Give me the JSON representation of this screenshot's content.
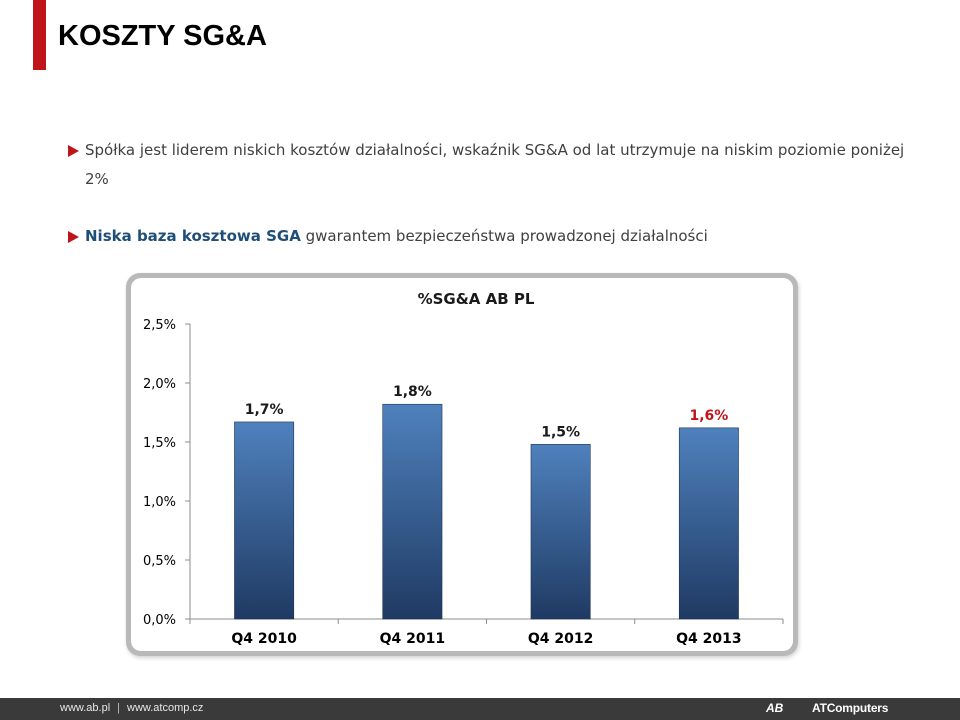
{
  "slide": {
    "title": "KOSZTY SG&A",
    "bullets": [
      {
        "text": "Spółka jest liderem niskich kosztów działalności,  wskaźnik SG&A od lat utrzymuje na niskim poziomie poniżej 2%"
      },
      {
        "strong": "Niska baza kosztowa SGA",
        "text": " gwarantem bezpieczeństwa prowadzonej działalności"
      }
    ]
  },
  "colors": {
    "accent": "#c0141b",
    "heading_blue": "#1f4e79",
    "bar_top": "#4f81bd",
    "bar_bottom": "#1f3a63",
    "highlight_label": "#c0141b"
  },
  "chart_data": {
    "type": "bar",
    "title": "%SG&A AB PL",
    "categories": [
      "Q4 2010",
      "Q4 2011",
      "Q4 2012",
      "Q4 2013"
    ],
    "values": [
      1.67,
      1.82,
      1.48,
      1.62
    ],
    "data_labels": [
      "1,7%",
      "1,8%",
      "1,5%",
      "1,6%"
    ],
    "highlight_index": 3,
    "ylim": [
      0,
      2.5
    ],
    "yticks": [
      0,
      0.5,
      1.0,
      1.5,
      2.0,
      2.5
    ],
    "ytick_labels": [
      "0,0%",
      "0,5%",
      "1,0%",
      "1,5%",
      "2,0%",
      "2,5%"
    ],
    "xlabel": "",
    "ylabel": "",
    "grid": false,
    "legend": false
  },
  "footer": {
    "link_ab": "www.ab.pl",
    "separator": "|",
    "link_atcomp": "www.atcomp.cz",
    "logo_ab": "AB",
    "logo_atc": "ATComputers"
  }
}
